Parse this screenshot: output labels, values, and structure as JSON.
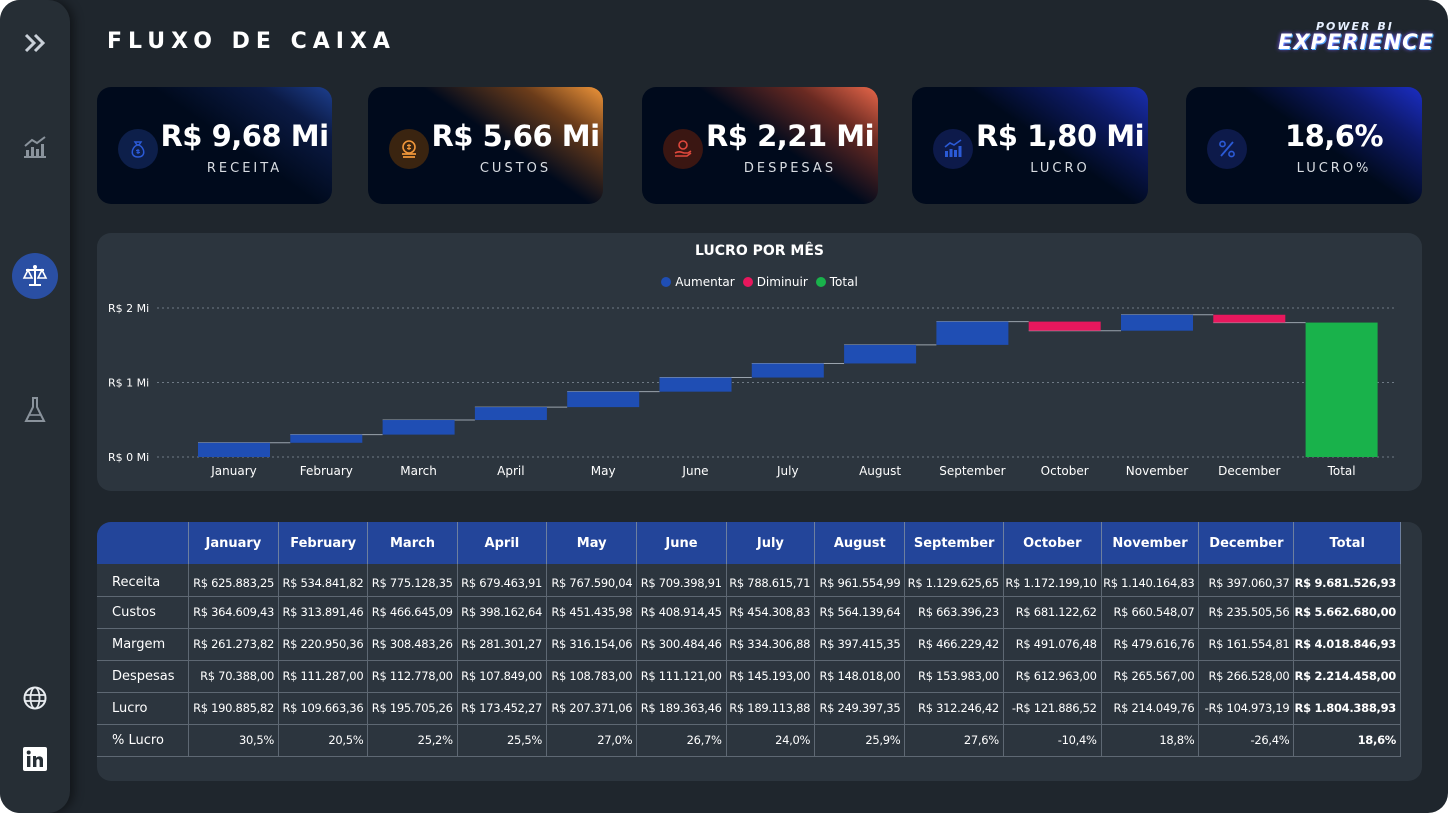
{
  "header": {
    "title": "FLUXO DE CAIXA",
    "brand_top": "POWER BI",
    "brand_main": "EXPERIENCE"
  },
  "sidebar": {
    "items": [
      {
        "icon": "chevrons-right-icon"
      },
      {
        "icon": "growth-chart-icon"
      },
      {
        "icon": "scale-balance-icon",
        "active": true
      },
      {
        "icon": "flask-icon"
      },
      {
        "icon": "globe-icon"
      },
      {
        "icon": "linkedin-icon"
      }
    ]
  },
  "kpis": [
    {
      "value": "R$ 9,68 Mi",
      "label": "RECEITA",
      "icon": "money-bag-icon",
      "accent": "#1d3f8f"
    },
    {
      "value": "R$ 5,66 Mi",
      "label": "CUSTOS",
      "icon": "coin-stack-icon",
      "accent": "#f0963a"
    },
    {
      "value": "R$ 2,21 Mi",
      "label": "DESPESAS",
      "icon": "hand-coin-icon",
      "accent": "#e8674a"
    },
    {
      "value": "R$ 1,80 Mi",
      "label": "LUCRO",
      "icon": "bar-growth-icon",
      "accent": "#1a2fb0"
    },
    {
      "value": "18,6%",
      "label": "LUCRO%",
      "icon": "percent-icon",
      "accent": "#1b2ec4"
    }
  ],
  "colors": {
    "increase": "#1f4eb4",
    "decrease": "#e8175d",
    "total": "#19b24b",
    "panel": "#2c353e"
  },
  "chart_data": {
    "type": "waterfall",
    "title": "LUCRO POR MÊS",
    "legend": [
      {
        "label": "Aumentar",
        "color": "#1f4eb4"
      },
      {
        "label": "Diminuir",
        "color": "#e8175d"
      },
      {
        "label": "Total",
        "color": "#19b24b"
      }
    ],
    "categories": [
      "January",
      "February",
      "March",
      "April",
      "May",
      "June",
      "July",
      "August",
      "September",
      "October",
      "November",
      "December",
      "Total"
    ],
    "values": [
      190885.82,
      109663.36,
      195705.26,
      173452.27,
      207371.06,
      189363.46,
      189113.88,
      249397.35,
      312246.42,
      -121886.52,
      214049.76,
      -104973.19,
      1804388.93
    ],
    "y_ticks": [
      {
        "value": 0,
        "label": "R$ 0 Mi"
      },
      {
        "value": 1000000,
        "label": "R$ 1 Mi"
      },
      {
        "value": 2000000,
        "label": "R$ 2 Mi"
      }
    ],
    "ylim": [
      0,
      2000000
    ],
    "grid": true,
    "legend_position": "top-center"
  },
  "table": {
    "columns": [
      "",
      "January",
      "February",
      "March",
      "April",
      "May",
      "June",
      "July",
      "August",
      "September",
      "October",
      "November",
      "December",
      "Total"
    ],
    "rows": [
      {
        "label": "Receita",
        "values": [
          "R$ 625.883,25",
          "R$ 534.841,82",
          "R$ 775.128,35",
          "R$ 679.463,91",
          "R$ 767.590,04",
          "R$ 709.398,91",
          "R$ 788.615,71",
          "R$ 961.554,99",
          "R$ 1.129.625,65",
          "R$ 1.172.199,10",
          "R$ 1.140.164,83",
          "R$ 397.060,37",
          "R$ 9.681.526,93"
        ]
      },
      {
        "label": "Custos",
        "values": [
          "R$ 364.609,43",
          "R$ 313.891,46",
          "R$ 466.645,09",
          "R$ 398.162,64",
          "R$ 451.435,98",
          "R$ 408.914,45",
          "R$ 454.308,83",
          "R$ 564.139,64",
          "R$ 663.396,23",
          "R$ 681.122,62",
          "R$ 660.548,07",
          "R$ 235.505,56",
          "R$ 5.662.680,00"
        ]
      },
      {
        "label": "Margem",
        "values": [
          "R$ 261.273,82",
          "R$ 220.950,36",
          "R$ 308.483,26",
          "R$ 281.301,27",
          "R$ 316.154,06",
          "R$ 300.484,46",
          "R$ 334.306,88",
          "R$ 397.415,35",
          "R$ 466.229,42",
          "R$ 491.076,48",
          "R$ 479.616,76",
          "R$ 161.554,81",
          "R$ 4.018.846,93"
        ]
      },
      {
        "label": "Despesas",
        "values": [
          "R$ 70.388,00",
          "R$ 111.287,00",
          "R$ 112.778,00",
          "R$ 107.849,00",
          "R$ 108.783,00",
          "R$ 111.121,00",
          "R$ 145.193,00",
          "R$ 148.018,00",
          "R$ 153.983,00",
          "R$ 612.963,00",
          "R$ 265.567,00",
          "R$ 266.528,00",
          "R$ 2.214.458,00"
        ]
      },
      {
        "label": "Lucro",
        "values": [
          "R$ 190.885,82",
          "R$ 109.663,36",
          "R$ 195.705,26",
          "R$ 173.452,27",
          "R$ 207.371,06",
          "R$ 189.363,46",
          "R$ 189.113,88",
          "R$ 249.397,35",
          "R$ 312.246,42",
          "-R$ 121.886,52",
          "R$ 214.049,76",
          "-R$ 104.973,19",
          "R$ 1.804.388,93"
        ]
      },
      {
        "label": "% Lucro",
        "values": [
          "30,5%",
          "20,5%",
          "25,2%",
          "25,5%",
          "27,0%",
          "26,7%",
          "24,0%",
          "25,9%",
          "27,6%",
          "-10,4%",
          "18,8%",
          "-26,4%",
          "18,6%"
        ]
      }
    ]
  }
}
